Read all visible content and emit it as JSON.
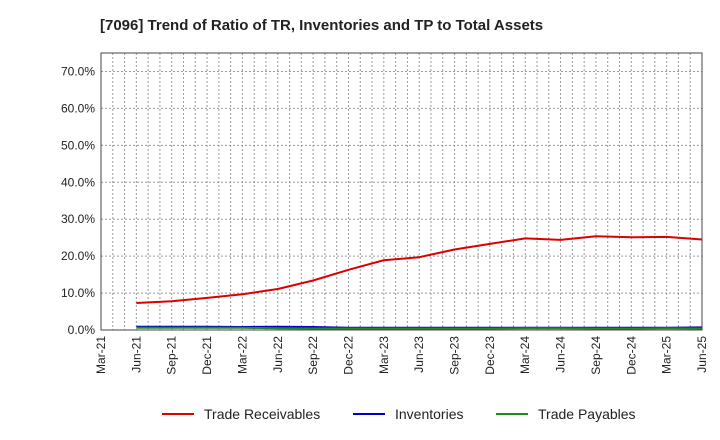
{
  "chart_data": {
    "type": "line",
    "title": "[7096]  Trend of Ratio of TR, Inventories and TP to Total Assets",
    "xlabel": "",
    "ylabel": "",
    "ylim": [
      0,
      0.75
    ],
    "y_ticks": [
      0.0,
      0.1,
      0.2,
      0.3,
      0.4,
      0.5,
      0.6,
      0.7
    ],
    "y_tick_labels": [
      "0.0%",
      "10.0%",
      "20.0%",
      "30.0%",
      "40.0%",
      "50.0%",
      "60.0%",
      "70.0%"
    ],
    "x_range": [
      "Mar-21",
      "Jun-25"
    ],
    "x_tick_labels": [
      "Mar-21",
      "Jun-21",
      "Sep-21",
      "Dec-21",
      "Mar-22",
      "Jun-22",
      "Sep-22",
      "Dec-22",
      "Mar-23",
      "Jun-23",
      "Sep-23",
      "Dec-23",
      "Mar-24",
      "Jun-24",
      "Sep-24",
      "Dec-24",
      "Mar-25",
      "Jun-25"
    ],
    "grid": true,
    "legend_position": "bottom",
    "x": [
      "Jun-21",
      "Sep-21",
      "Dec-21",
      "Mar-22",
      "Jun-22",
      "Sep-22",
      "Dec-22",
      "Mar-23",
      "Jun-23",
      "Sep-23",
      "Dec-23",
      "Mar-24",
      "Jun-24",
      "Sep-24",
      "Dec-24",
      "Mar-25",
      "Jun-25"
    ],
    "series": [
      {
        "name": "Trade Receivables",
        "color": "#dd0000",
        "values": [
          0.073,
          0.078,
          0.087,
          0.097,
          0.111,
          0.134,
          0.163,
          0.189,
          0.197,
          0.218,
          0.233,
          0.248,
          0.244,
          0.254,
          0.251,
          0.252,
          0.245
        ]
      },
      {
        "name": "Inventories",
        "color": "#0000cc",
        "values": [
          0.009,
          0.009,
          0.009,
          0.008,
          0.009,
          0.008,
          0.006,
          0.006,
          0.006,
          0.006,
          0.006,
          0.006,
          0.006,
          0.006,
          0.006,
          0.006,
          0.007
        ]
      },
      {
        "name": "Trade Payables",
        "color": "#228822",
        "values": [
          0.006,
          0.006,
          0.006,
          0.006,
          0.005,
          0.004,
          0.004,
          0.004,
          0.004,
          0.004,
          0.004,
          0.005,
          0.005,
          0.004,
          0.004,
          0.005,
          0.004
        ]
      }
    ]
  }
}
